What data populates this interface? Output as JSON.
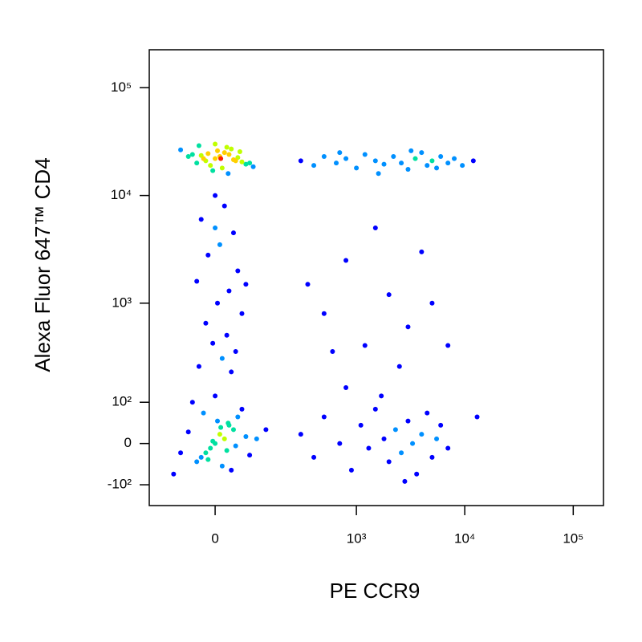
{
  "chart_data": {
    "type": "scatter",
    "xlabel": "PE CCR9",
    "ylabel": "Alexa Fluor 647™ CD4",
    "xscale": "biexponential",
    "yscale": "biexponential",
    "xlim": [
      -190,
      190000
    ],
    "ylim": [
      -175,
      225000
    ],
    "xticks": [
      0,
      {
        "value": 1000,
        "label": "10³"
      },
      {
        "value": 10000,
        "label": "10⁴"
      },
      {
        "value": 100000,
        "label": "10⁵"
      }
    ],
    "yticks": [
      {
        "value": -100,
        "label": "-10²"
      },
      0,
      {
        "value": 100,
        "label": "10²"
      },
      {
        "value": 1000,
        "label": "10³"
      },
      {
        "value": 10000,
        "label": "10⁴"
      },
      {
        "value": 100000,
        "label": "10⁵"
      }
    ],
    "colormap": [
      "#0000ff",
      "#0090ff",
      "#00e0a0",
      "#c0ff00",
      "#ffd000",
      "#ff2000"
    ],
    "x": [
      0,
      10,
      -20,
      30,
      -40,
      50,
      20,
      -10,
      40,
      -30,
      60,
      5,
      15,
      -25,
      35,
      -50,
      70,
      25,
      -5,
      45,
      -60,
      80,
      0,
      12,
      -15,
      28,
      55,
      -35,
      90,
      -80,
      300,
      400,
      500,
      650,
      800,
      1000,
      1200,
      1500,
      1800,
      2200,
      2600,
      3000,
      3500,
      4000,
      4500,
      5000,
      5500,
      6000,
      7000,
      8000,
      9500,
      12000,
      700,
      1600,
      3200,
      0,
      20,
      -30,
      40,
      10,
      -15,
      50,
      -40,
      30,
      5,
      60,
      -20,
      25,
      -5,
      45,
      15,
      -35,
      35,
      0,
      70,
      0,
      10,
      -20,
      30,
      -40,
      50,
      20,
      -10,
      40,
      -30,
      60,
      5,
      15,
      -25,
      35,
      -50,
      70,
      25,
      -5,
      45,
      -60,
      80,
      0,
      12,
      -15,
      28,
      100,
      -80,
      130,
      -100,
      300,
      400,
      500,
      700,
      900,
      1100,
      1300,
      1500,
      1800,
      2000,
      2300,
      2600,
      3000,
      3300,
      3600,
      4000,
      4500,
      5000,
      5500,
      6000,
      7000,
      800,
      1700,
      2800,
      13000,
      500,
      800,
      1200,
      2000,
      3000,
      4000,
      600,
      1500,
      2500,
      350,
      5000,
      7000
    ],
    "y": [
      22000,
      23000,
      21000,
      24000,
      20000,
      22500,
      25000,
      19000,
      21500,
      23500,
      20500,
      26000,
      18000,
      22000,
      27000,
      24000,
      19500,
      28000,
      17000,
      21000,
      23000,
      20000,
      30000,
      22000,
      24500,
      16000,
      25500,
      29000,
      18500,
      26500,
      21000,
      19000,
      23000,
      20000,
      22000,
      18000,
      24000,
      21000,
      19500,
      23000,
      20000,
      17500,
      22000,
      25000,
      19000,
      21000,
      18000,
      23000,
      20000,
      22000,
      19000,
      21000,
      25000,
      16000,
      26000,
      10000,
      8000,
      6000,
      4500,
      3500,
      2800,
      2000,
      1600,
      1300,
      1000,
      800,
      650,
      500,
      420,
      350,
      300,
      250,
      220,
      5000,
      1500,
      0,
      20,
      -20,
      40,
      -40,
      60,
      10,
      -10,
      30,
      -30,
      80,
      50,
      -50,
      70,
      -60,
      100,
      15,
      -15,
      5,
      -5,
      25,
      -25,
      120,
      35,
      -35,
      45,
      10,
      -20,
      30,
      -70,
      20,
      -30,
      60,
      0,
      -60,
      40,
      -10,
      80,
      10,
      -40,
      30,
      -20,
      50,
      0,
      -70,
      20,
      70,
      -30,
      10,
      40,
      -10,
      150,
      120,
      -90,
      60,
      800,
      2500,
      400,
      1200,
      600,
      3000,
      350,
      5000,
      250,
      1500,
      1000,
      400
    ]
  }
}
